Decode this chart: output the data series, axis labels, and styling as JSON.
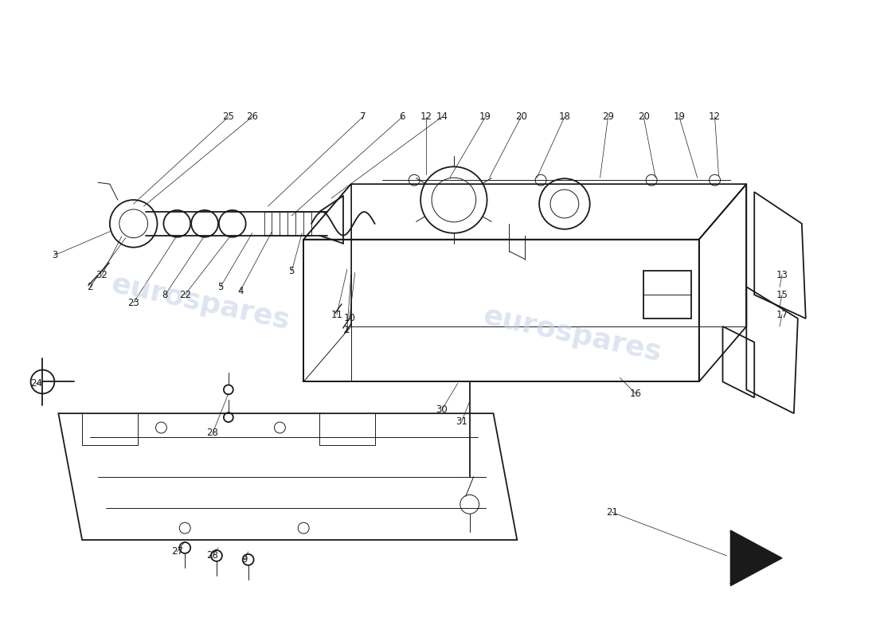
{
  "background_color": "#ffffff",
  "watermark_text": "eurospares",
  "watermark_color": "#c8d4e8",
  "line_color": "#1a1a1a",
  "label_color": "#1a1a1a",
  "label_fontsize": 8.5,
  "figsize": [
    11.0,
    8.0
  ],
  "dpi": 100
}
